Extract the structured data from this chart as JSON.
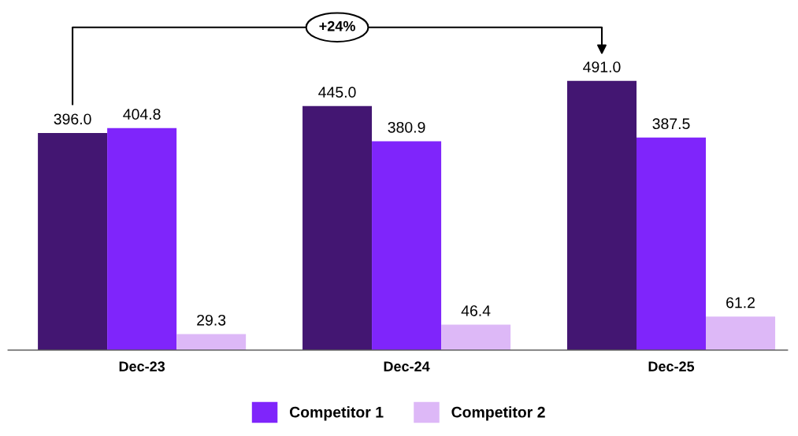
{
  "chart_data": {
    "type": "bar",
    "categories": [
      "Dec-23",
      "Dec-24",
      "Dec-25"
    ],
    "series": [
      {
        "color": "#431672",
        "values": [
          396.0,
          445.0,
          491.0
        ],
        "value_labels": [
          "396.0",
          "445.0",
          "491.0"
        ]
      },
      {
        "name": "Competitor 1",
        "color": "#7f25fb",
        "values": [
          404.8,
          380.9,
          387.5
        ],
        "value_labels": [
          "404.8",
          "380.9",
          "387.5"
        ]
      },
      {
        "name": "Competitor 2",
        "color": "#ddb8f7",
        "values": [
          29.3,
          46.4,
          61.2
        ],
        "value_labels": [
          "29.3",
          "46.4",
          "61.2"
        ]
      }
    ],
    "legend": "bottom",
    "grid": false,
    "annotations": [
      "+24%"
    ]
  }
}
